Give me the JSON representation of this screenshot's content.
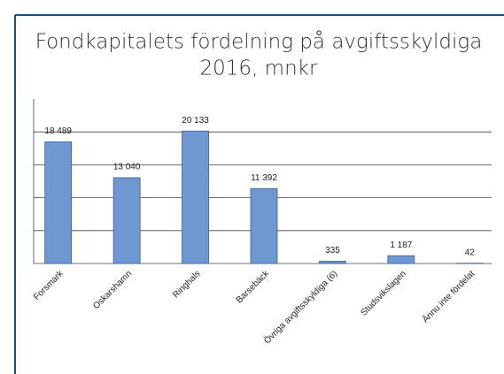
{
  "chart_data": {
    "type": "bar",
    "title_lines": [
      "Fondkapitalets fördelning på avgiftsskyldiga",
      "2016, mnkr"
    ],
    "categories": [
      "Forsmark",
      "Oskarshamn",
      "Ringhals",
      "Barsebäck",
      "Övriga avgiftsskyldiga (6)",
      "Studsvikslagen",
      "Ännu inte fördelat"
    ],
    "values": [
      18489,
      13040,
      20133,
      11392,
      335,
      1187,
      42
    ],
    "value_labels": [
      "18 489",
      "13 040",
      "20 133",
      "11 392",
      "335",
      "1 187",
      "42"
    ],
    "color": "#6f97d2",
    "ylim": [
      0,
      25000
    ],
    "yticks": [
      0,
      5000,
      10000,
      15000,
      20000
    ],
    "grid": true
  }
}
